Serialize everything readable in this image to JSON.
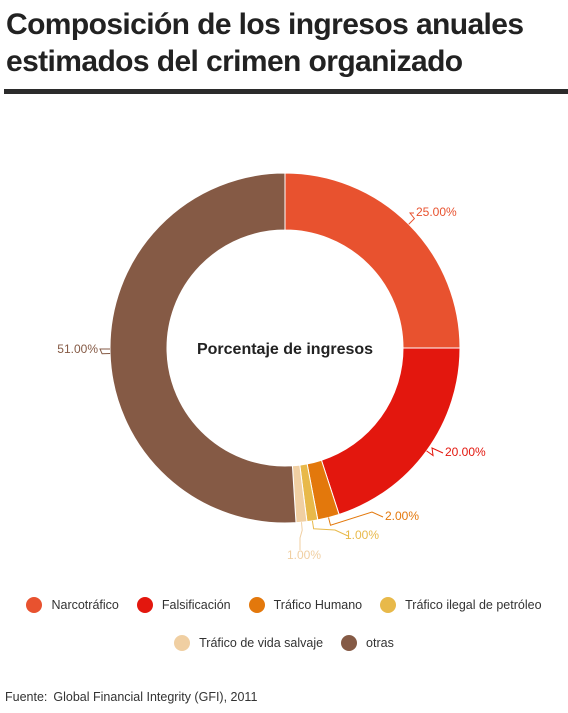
{
  "title": "Composición de los ingresos anuales estimados del crimen organizado",
  "chart_data": {
    "type": "pie",
    "donut": true,
    "center_label": "Porcentaje de ingresos",
    "slices": [
      {
        "name": "Narcotráfico",
        "value": 25,
        "label": "25.00%",
        "color": "#e8522f"
      },
      {
        "name": "Falsificación",
        "value": 20,
        "label": "20.00%",
        "color": "#e3170e"
      },
      {
        "name": "Tráfico Humano",
        "value": 2,
        "label": "2.00%",
        "color": "#e3780c"
      },
      {
        "name": "Tráfico ilegal de petróleo",
        "value": 1,
        "label": "1.00%",
        "color": "#e8b94a"
      },
      {
        "name": "Tráfico de vida salvaje",
        "value": 1,
        "label": "1.00%",
        "color": "#f0cfa2"
      },
      {
        "name": "otras",
        "value": 51,
        "label": "51.00%",
        "color": "#855a45"
      }
    ],
    "legend_position": "bottom"
  },
  "source": {
    "label": "Fuente:",
    "text": "Global Financial Integrity (GFI), 2011"
  }
}
